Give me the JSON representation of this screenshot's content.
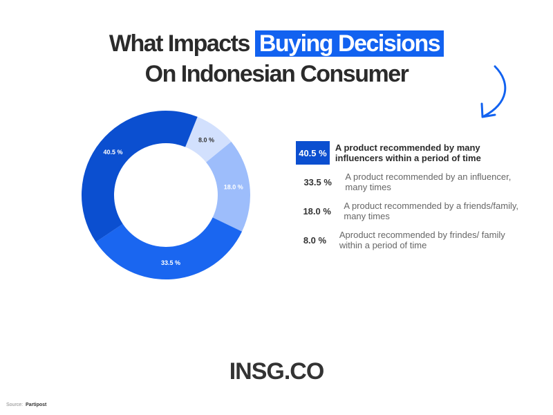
{
  "title": {
    "line1_plain": "What Impacts",
    "line1_highlight": "Buying Decisions",
    "line2": "On Indonesian Consumer"
  },
  "chart_data": {
    "type": "pie",
    "donut": true,
    "categories": [
      "A product recommended by many influencers within a period of time",
      "A product recommended by an influencer, many times",
      "A product recommended by a friends/family, many times",
      "Aproduct recommended by frindes/ family within a period of time"
    ],
    "values": [
      40.5,
      33.5,
      18.0,
      8.0
    ],
    "slice_labels": [
      "40.5 %",
      "33.5 %",
      "18.0 %",
      "8.0 %"
    ],
    "legend_values": [
      "40.5 %",
      "33.5 %",
      "18.0 %",
      "8.0 %"
    ],
    "colors": [
      "#0b4fd0",
      "#1a66f0",
      "#9dbdfb",
      "#d2e0fd"
    ],
    "legend": "right"
  },
  "logo": "INSG.CO",
  "source": {
    "label": "Source:",
    "value": "Partipost"
  }
}
